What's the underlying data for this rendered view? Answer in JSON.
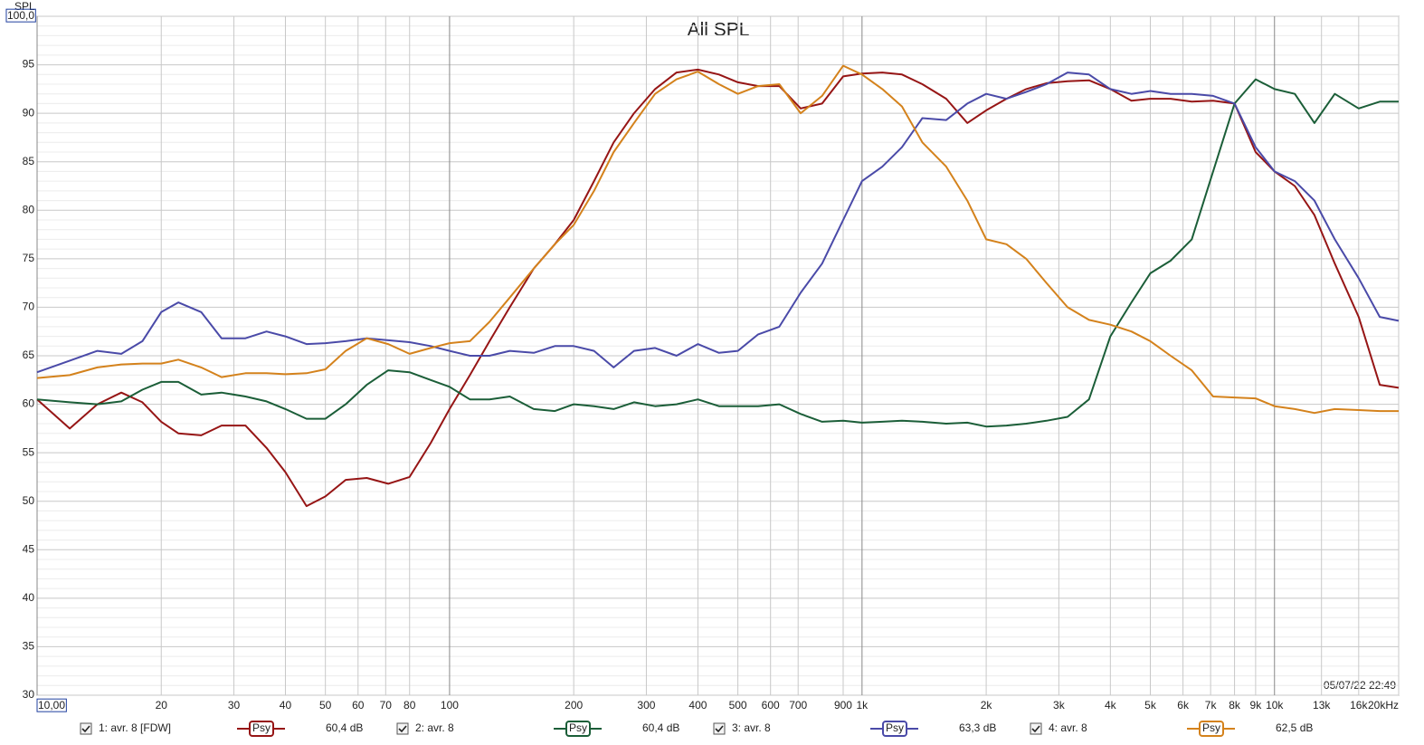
{
  "chart_data": {
    "type": "line",
    "title": "All SPL",
    "ylabel": "SPL",
    "timestamp": "05/07/22 22:49",
    "xscale": "log",
    "grid": true,
    "xlim": [
      10,
      20000
    ],
    "ylim": [
      30,
      100
    ],
    "xticks": [
      {
        "value": 10,
        "label": "10,00"
      },
      20,
      30,
      40,
      50,
      60,
      70,
      80,
      100,
      200,
      300,
      400,
      500,
      600,
      700,
      900,
      {
        "value": 1000,
        "label": "1k"
      },
      {
        "value": 2000,
        "label": "2k"
      },
      {
        "value": 3000,
        "label": "3k"
      },
      {
        "value": 4000,
        "label": "4k"
      },
      {
        "value": 5000,
        "label": "5k"
      },
      {
        "value": 6000,
        "label": "6k"
      },
      {
        "value": 7000,
        "label": "7k"
      },
      {
        "value": 8000,
        "label": "8k"
      },
      {
        "value": 9000,
        "label": "9k"
      },
      {
        "value": 10000,
        "label": "10k"
      },
      {
        "value": 13000,
        "label": "13k"
      },
      {
        "value": 16000,
        "label": "16k"
      },
      {
        "value": 20000,
        "label": "20kHz"
      }
    ],
    "yticks": [
      30,
      35,
      40,
      45,
      50,
      55,
      60,
      65,
      70,
      75,
      80,
      85,
      90,
      95,
      {
        "value": 100,
        "label": "100,0"
      }
    ],
    "x": [
      10,
      12,
      14,
      16,
      18,
      20,
      22,
      25,
      28,
      32,
      36,
      40,
      45,
      50,
      56,
      63,
      71,
      80,
      90,
      100,
      112,
      125,
      140,
      160,
      180,
      200,
      224,
      250,
      280,
      315,
      355,
      400,
      450,
      500,
      560,
      630,
      710,
      800,
      900,
      1000,
      1120,
      1250,
      1400,
      1600,
      1800,
      2000,
      2240,
      2500,
      2800,
      3150,
      3550,
      4000,
      4500,
      5000,
      5600,
      6300,
      7100,
      8000,
      9000,
      10000,
      11200,
      12500,
      14000,
      16000,
      18000,
      20000
    ],
    "series": [
      {
        "name": "1: avr. 8 [FDW]",
        "smoothing": "Psy",
        "level": "60,4 dB",
        "color": "#961515",
        "values": [
          60.5,
          57.5,
          60,
          61.2,
          60.2,
          58.2,
          57,
          56.8,
          57.8,
          57.8,
          55.5,
          53,
          49.5,
          50.5,
          52.2,
          52.4,
          51.8,
          52.5,
          56,
          59.5,
          63,
          66.5,
          70,
          74,
          76.5,
          79,
          83,
          87,
          90,
          92.5,
          94.2,
          94.5,
          94,
          93.2,
          92.8,
          92.8,
          90.5,
          91,
          93.8,
          94.1,
          94.2,
          94,
          93,
          91.5,
          89,
          90.3,
          91.5,
          92.5,
          93.1,
          93.3,
          93.4,
          92.5,
          91.3,
          91.5,
          91.5,
          91.2,
          91.3,
          91,
          86,
          84,
          82.5,
          79.5,
          74.5,
          69,
          62,
          61.7
        ]
      },
      {
        "name": "2: avr. 8",
        "smoothing": "Psy",
        "level": "60,4 dB",
        "color": "#1b5e38",
        "values": [
          60.5,
          60.2,
          60,
          60.3,
          61.5,
          62.3,
          62.3,
          61,
          61.2,
          60.8,
          60.3,
          59.5,
          58.5,
          58.5,
          60,
          62,
          63.5,
          63.3,
          62.5,
          61.8,
          60.5,
          60.5,
          60.8,
          59.5,
          59.3,
          60,
          59.8,
          59.5,
          60.2,
          59.8,
          60,
          60.5,
          59.8,
          59.8,
          59.8,
          60,
          59,
          58.2,
          58.3,
          58.1,
          58.2,
          58.3,
          58.2,
          58,
          58.1,
          57.7,
          57.8,
          58,
          58.3,
          58.7,
          60.5,
          67,
          70.5,
          73.5,
          74.8,
          77,
          84,
          91,
          93.5,
          92.5,
          92,
          89,
          92,
          90.5,
          91.2,
          91.2
        ]
      },
      {
        "name": "3: avr. 8",
        "smoothing": "Psy",
        "level": "63,3 dB",
        "color": "#4a4aa8",
        "values": [
          63.3,
          64.5,
          65.5,
          65.2,
          66.5,
          69.5,
          70.5,
          69.5,
          66.8,
          66.8,
          67.5,
          67,
          66.2,
          66.3,
          66.5,
          66.8,
          66.6,
          66.4,
          66,
          65.5,
          65,
          65,
          65.5,
          65.3,
          66,
          66,
          65.5,
          63.8,
          65.5,
          65.8,
          65,
          66.2,
          65.3,
          65.5,
          67.2,
          68,
          71.5,
          74.5,
          79,
          83,
          84.5,
          86.5,
          89.5,
          89.3,
          91,
          92,
          91.5,
          92.2,
          93,
          94.2,
          94,
          92.5,
          92,
          92.3,
          92,
          92,
          91.8,
          91,
          86.5,
          84,
          83,
          81,
          77,
          73,
          69,
          68.6
        ]
      },
      {
        "name": "4: avr. 8",
        "smoothing": "Psy",
        "level": "62,5 dB",
        "color": "#d4821c",
        "values": [
          62.7,
          63,
          63.8,
          64.1,
          64.2,
          64.2,
          64.6,
          63.8,
          62.8,
          63.2,
          63.2,
          63.1,
          63.2,
          63.6,
          65.5,
          66.8,
          66.2,
          65.2,
          65.8,
          66.3,
          66.5,
          68.5,
          71,
          74,
          76.5,
          78.5,
          82,
          86,
          89,
          92,
          93.5,
          94.3,
          93,
          92,
          92.8,
          93,
          90,
          91.8,
          94.9,
          94,
          92.5,
          90.7,
          87,
          84.5,
          81,
          77,
          76.5,
          75,
          72.5,
          70,
          68.7,
          68.2,
          67.5,
          66.5,
          65,
          63.5,
          60.8,
          60.7,
          60.6,
          59.8,
          59.5,
          59.1,
          59.5,
          59.4,
          59.3,
          59.3
        ]
      }
    ]
  }
}
